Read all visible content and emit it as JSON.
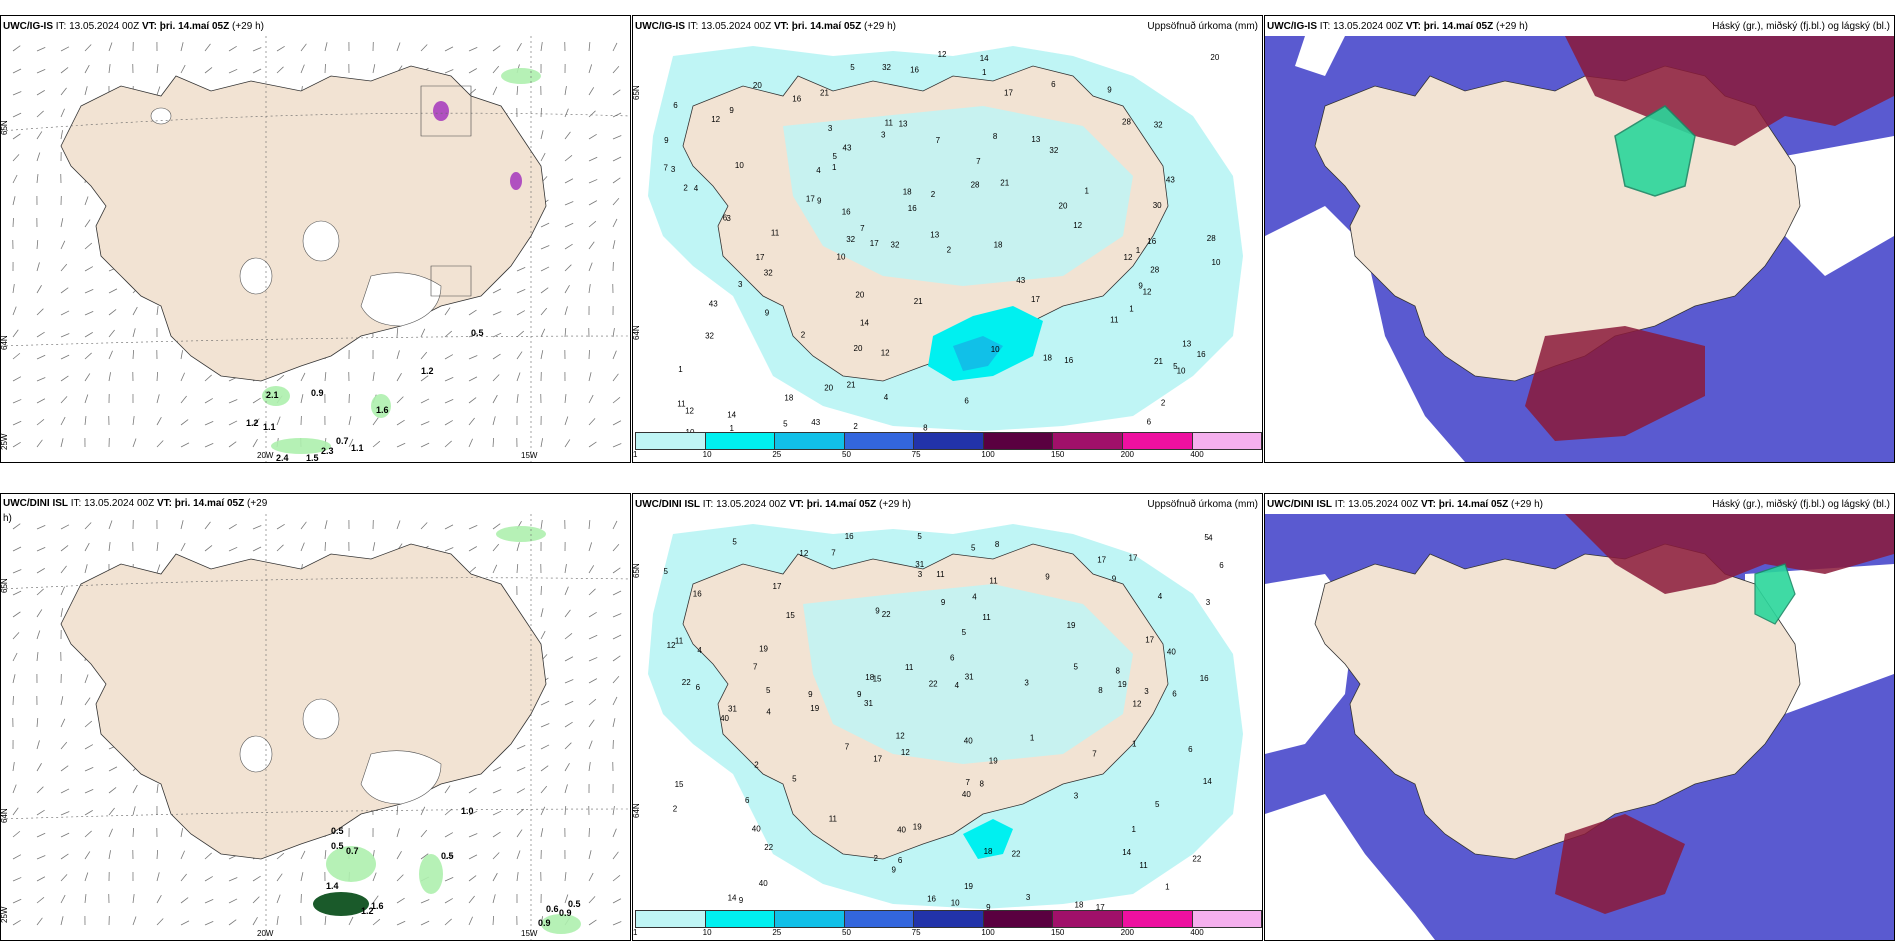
{
  "top_row": {
    "wind": {
      "model": "UWC/IG-IS",
      "it": "IT: 13.05.2024 00Z",
      "vt": "VT: þri. 14.maí 05Z",
      "lead": "(+29 h)",
      "grid_labels": [
        "65N",
        "64N",
        "25W",
        "20W",
        "15W"
      ],
      "values": [
        "0.5",
        "1.2",
        "0.9",
        "2.1",
        "1.6",
        "1.2",
        "1.1",
        "0.7",
        "2.4",
        "1.5",
        "2.3",
        "1.1"
      ]
    },
    "precip": {
      "model": "UWC/IG-IS",
      "it": "IT: 13.05.2024 00Z",
      "vt": "VT: þri. 14.maí 05Z",
      "lead": "(+29 h)",
      "title": "Uppsöfnuð úrkoma (mm)",
      "grid_labels": [
        "65N",
        "64N"
      ],
      "legend": [
        "1",
        "10",
        "25",
        "50",
        "75",
        "100",
        "150",
        "200",
        "400"
      ]
    },
    "cloud": {
      "model": "UWC/IG-IS",
      "it": "IT: 13.05.2024 00Z",
      "vt": "VT: þri. 14.maí 05Z",
      "lead": "(+29 h)",
      "title": "Háský (gr.), miðský (fj.bl.) og lágský (bl.)"
    }
  },
  "bottom_row": {
    "wind": {
      "model": "UWC/DINI ISL",
      "it": "IT: 13.05.2024 00Z",
      "vt": "VT: þri. 14.maí 05Z",
      "lead": "(+29",
      "lead2": "h)",
      "grid_labels": [
        "65N",
        "64N",
        "25W",
        "20W",
        "15W"
      ],
      "values": [
        "1.0",
        "0.5",
        "0.7",
        "0.5",
        "0.5",
        "1.4",
        "1.6",
        "1.2",
        "0.6",
        "0.9",
        "0.5",
        "0.9"
      ]
    },
    "precip": {
      "model": "UWC/DINI ISL",
      "it": "IT: 13.05.2024 00Z",
      "vt": "VT: þri. 14.maí 05Z",
      "lead": "(+29 h)",
      "title": "Uppsöfnuð úrkoma (mm)",
      "grid_labels": [
        "65N",
        "64N"
      ],
      "legend": [
        "1",
        "10",
        "25",
        "50",
        "75",
        "100",
        "150",
        "200",
        "400"
      ]
    },
    "cloud": {
      "model": "UWC/DINI ISL",
      "it": "IT: 13.05.2024 00Z",
      "vt": "VT: þri. 14.maí 05Z",
      "lead": "(+29 h)",
      "title": "Háský (gr.), miðský (fj.bl.) og lágský (bl.)"
    }
  },
  "precip_numbers_top": [
    "1",
    "2",
    "5",
    "4",
    "3",
    "6",
    "7",
    "8",
    "10",
    "12",
    "9",
    "11",
    "13",
    "14",
    "17",
    "20",
    "21",
    "28",
    "30",
    "32",
    "43",
    "16",
    "18"
  ],
  "precip_numbers_bottom": [
    "1",
    "2",
    "3",
    "4",
    "5",
    "6",
    "7",
    "8",
    "9",
    "10",
    "11",
    "12",
    "14",
    "15",
    "16",
    "17",
    "18",
    "19",
    "22",
    "31",
    "40"
  ],
  "colors": {
    "land": "#f2e3d3",
    "coast": "#333333",
    "precip_scale": [
      "#bff5f5",
      "#00f0f0",
      "#11c0e8",
      "#3366dd",
      "#2233aa",
      "#5a0040",
      "#a0106a",
      "#ee10a0",
      "#f5b0ee"
    ],
    "cloud_high": "#5a5ad0",
    "cloud_mid": "#8b1a3a",
    "cloud_low": "#2bd69b",
    "green_shade": "#aef0ae"
  }
}
